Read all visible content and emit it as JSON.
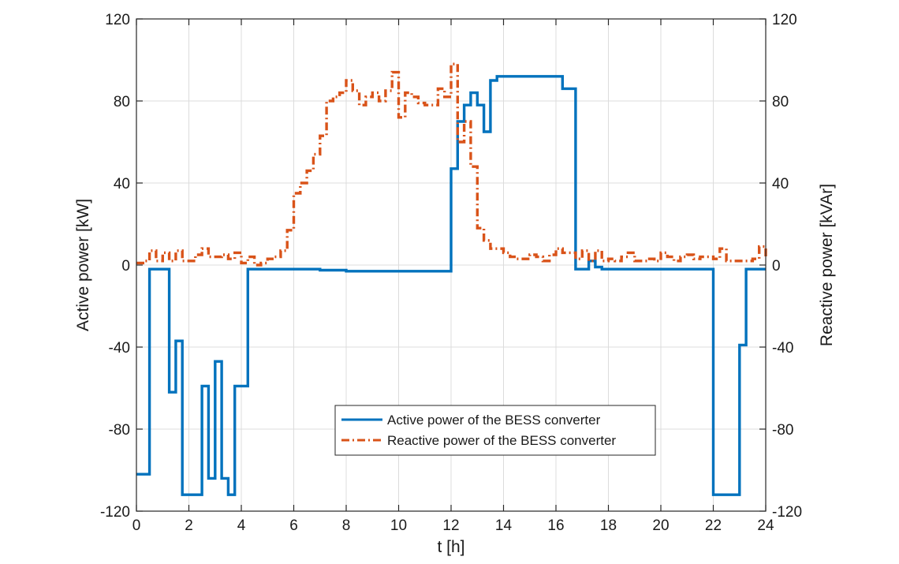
{
  "chart_data": {
    "type": "line",
    "xlabel": "t [h]",
    "ylabel_left": "Active power [kW]",
    "ylabel_right": "Reactive power [kVAr]",
    "xlim": [
      0,
      24
    ],
    "ylim_left": [
      -120,
      120
    ],
    "ylim_right": [
      -120,
      120
    ],
    "x_ticks": [
      "0",
      "2",
      "4",
      "6",
      "8",
      "10",
      "12",
      "14",
      "16",
      "18",
      "20",
      "22",
      "24"
    ],
    "y_ticks_left": [
      "120",
      "80",
      "40",
      "0",
      "-40",
      "-80",
      "-120"
    ],
    "y_ticks_right": [
      "120",
      "80",
      "40",
      "0",
      "-40",
      "-80",
      "-120"
    ],
    "grid": true,
    "legend_position": "bottom-center",
    "series": [
      {
        "name": "Active power of the BESS converter",
        "axis": "left",
        "color": "#0072BD",
        "style": "solid-step",
        "x": [
          0,
          0.5,
          1.0,
          1.25,
          1.5,
          1.75,
          2.0,
          2.25,
          2.5,
          2.75,
          3.0,
          3.25,
          3.5,
          3.75,
          4.0,
          4.25,
          4.5,
          5,
          6,
          7,
          8,
          9,
          10,
          11,
          11.5,
          12.0,
          12.25,
          12.5,
          12.75,
          13.0,
          13.25,
          13.5,
          13.75,
          14.0,
          14.25,
          14.5,
          15,
          15.5,
          16,
          16.25,
          16.5,
          16.75,
          17.0,
          17.25,
          17.5,
          17.75,
          18,
          19,
          20,
          21,
          21.5,
          22.0,
          22.25,
          22.5,
          22.75,
          23.0,
          23.25,
          23.5,
          23.75,
          24
        ],
        "y": [
          -102,
          -2,
          -2,
          -62,
          -37,
          -112,
          -112,
          -112,
          -59,
          -104,
          -47,
          -104,
          -112,
          -59,
          -59,
          -2,
          -2,
          -2,
          -2,
          -2.5,
          -3,
          -3,
          -3,
          -3,
          -3,
          47,
          70,
          78,
          84,
          78,
          65,
          90,
          92,
          92,
          92,
          92,
          92,
          92,
          92,
          86,
          86,
          -2,
          -2,
          2,
          -1,
          -2,
          -2,
          -2,
          -2,
          -2,
          -2,
          -112,
          -112,
          -112,
          -112,
          -39,
          -2,
          -2,
          -2,
          -2
        ]
      },
      {
        "name": "Reactive power of the BESS converter",
        "axis": "right",
        "color": "#D95319",
        "style": "dash-dot-step",
        "x": [
          0,
          0.25,
          0.5,
          0.75,
          1.0,
          1.25,
          1.5,
          1.75,
          2.0,
          2.25,
          2.5,
          2.75,
          3.0,
          3.25,
          3.5,
          3.75,
          4.0,
          4.25,
          4.5,
          4.75,
          5.0,
          5.25,
          5.5,
          5.75,
          6.0,
          6.25,
          6.5,
          6.75,
          7.0,
          7.25,
          7.5,
          7.75,
          8.0,
          8.25,
          8.5,
          8.75,
          9.0,
          9.25,
          9.5,
          9.75,
          10.0,
          10.25,
          10.5,
          10.75,
          11.0,
          11.25,
          11.5,
          11.75,
          12.0,
          12.25,
          12.5,
          12.75,
          13.0,
          13.25,
          13.5,
          13.75,
          14.0,
          14.25,
          14.5,
          14.75,
          15.0,
          15.25,
          15.5,
          15.75,
          16.0,
          16.25,
          16.5,
          16.75,
          17.0,
          17.25,
          17.5,
          17.75,
          18.0,
          18.25,
          18.5,
          18.75,
          19.0,
          19.25,
          19.5,
          19.75,
          20.0,
          20.25,
          20.5,
          20.75,
          21.0,
          21.25,
          21.5,
          21.75,
          22.0,
          22.25,
          22.5,
          22.75,
          23.0,
          23.25,
          23.5,
          23.75,
          24
        ],
        "y": [
          1,
          2,
          7,
          2,
          6,
          2,
          7,
          2,
          2,
          5,
          8,
          4,
          4,
          5,
          3,
          6,
          1,
          4,
          0,
          1,
          3,
          4,
          7,
          17,
          35,
          40,
          46,
          54,
          63,
          80,
          82,
          84,
          90,
          85,
          78,
          82,
          84,
          80,
          85,
          94,
          72,
          84,
          82,
          79,
          78,
          78,
          86,
          82,
          98,
          60,
          70,
          48,
          18,
          12,
          8,
          8,
          6,
          4,
          3,
          3,
          5,
          4,
          2,
          5,
          8,
          6,
          6,
          3,
          7,
          2,
          7,
          2,
          3,
          2,
          4,
          6,
          2,
          2,
          3,
          2,
          6,
          4,
          2,
          4,
          5,
          3,
          4,
          4,
          3,
          8,
          2,
          2,
          2,
          2,
          3,
          9,
          3
        ]
      }
    ]
  }
}
